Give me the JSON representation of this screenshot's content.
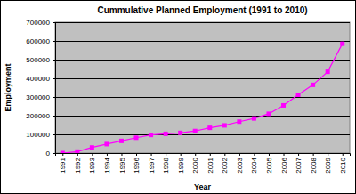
{
  "chart_data": {
    "type": "line",
    "title": "Cummulative Planned Employment (1991 to 2010)",
    "x_label": "Year",
    "y_label": "Employment",
    "categories": [
      "1991",
      "1992",
      "1993",
      "1994",
      "1995",
      "1996",
      "1997",
      "1998",
      "1999",
      "2000",
      "2001",
      "2002",
      "2003",
      "2004",
      "2005",
      "2006",
      "2007",
      "2008",
      "2009",
      "2010"
    ],
    "values": [
      0,
      8000,
      30000,
      48000,
      65000,
      82000,
      97000,
      103000,
      108000,
      118000,
      135000,
      148000,
      168000,
      185000,
      210000,
      255000,
      312000,
      365000,
      435000,
      585000
    ],
    "color": "#ff00ff",
    "marker": "square",
    "line_style": "solid",
    "ylim": [
      0,
      700000
    ],
    "yticks": [
      0,
      100000,
      200000,
      300000,
      400000,
      500000,
      600000,
      700000
    ],
    "grid": true
  }
}
